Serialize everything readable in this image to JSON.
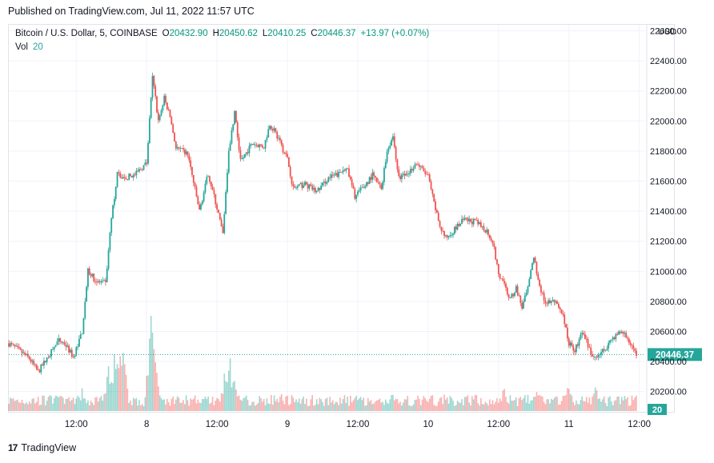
{
  "header": {
    "published": "Published on TradingView.com, Jul 11, 2022 11:57 UTC"
  },
  "legend": {
    "symbol": "Bitcoin / U.S. Dollar, 5, COINBASE",
    "open_key": "O",
    "open": "20432.90",
    "high_key": "H",
    "high": "20450.62",
    "low_key": "L",
    "low": "20410.25",
    "close_key": "C",
    "close": "20446.37",
    "change": "+13.97 (+0.07%)",
    "vol_label": "Vol",
    "vol_value": "20"
  },
  "footer": {
    "brand": "TradingView",
    "logo": "17"
  },
  "colors": {
    "up": "#26a69a",
    "down": "#ef5350",
    "grid": "#f0f3fa",
    "last_price": "#26a69a"
  },
  "chart_data": {
    "type": "candlestick",
    "symbol": "Bitcoin / U.S. Dollar",
    "interval": "5",
    "exchange": "COINBASE",
    "currency": "USD",
    "ylim": [
      20060,
      22640
    ],
    "y_ticks": [
      "22600.00",
      "22400.00",
      "22200.00",
      "22000.00",
      "21800.00",
      "21600.00",
      "21400.00",
      "21200.00",
      "21000.00",
      "20800.00",
      "20600.00",
      "20400.00",
      "20200.00"
    ],
    "y_tick_values": [
      22600,
      22400,
      22200,
      22000,
      21800,
      21600,
      21400,
      21200,
      21000,
      20800,
      20600,
      20400,
      20200
    ],
    "x_ticks": [
      "12:00",
      "8",
      "12:00",
      "9",
      "12:00",
      "10",
      "12:00",
      "11",
      "12:00"
    ],
    "x_tick_hours": [
      12,
      24,
      36,
      48,
      60,
      72,
      84,
      96,
      108
    ],
    "x_range_hours": [
      0.5,
      109
    ],
    "last_price": 20446.37,
    "last_price_label": "20446.37",
    "last_volume": 20,
    "last_volume_label": "20",
    "price_path": [
      {
        "h": 0.5,
        "p": 20520
      },
      {
        "h": 2,
        "p": 20480
      },
      {
        "h": 4,
        "p": 20420
      },
      {
        "h": 5.5,
        "p": 20330
      },
      {
        "h": 7,
        "p": 20420
      },
      {
        "h": 9,
        "p": 20540
      },
      {
        "h": 10,
        "p": 20520
      },
      {
        "h": 11.5,
        "p": 20430
      },
      {
        "h": 13,
        "p": 20600
      },
      {
        "h": 14,
        "p": 21000
      },
      {
        "h": 15.5,
        "p": 20930
      },
      {
        "h": 17,
        "p": 20920
      },
      {
        "h": 18,
        "p": 21350
      },
      {
        "h": 19,
        "p": 21650
      },
      {
        "h": 20,
        "p": 21620
      },
      {
        "h": 22,
        "p": 21640
      },
      {
        "h": 24,
        "p": 21720
      },
      {
        "h": 25,
        "p": 22300
      },
      {
        "h": 26,
        "p": 22000
      },
      {
        "h": 27,
        "p": 22150
      },
      {
        "h": 28,
        "p": 22030
      },
      {
        "h": 29,
        "p": 21820
      },
      {
        "h": 31,
        "p": 21780
      },
      {
        "h": 33,
        "p": 21400
      },
      {
        "h": 34.5,
        "p": 21650
      },
      {
        "h": 36,
        "p": 21420
      },
      {
        "h": 37,
        "p": 21250
      },
      {
        "h": 38,
        "p": 21800
      },
      {
        "h": 39,
        "p": 22060
      },
      {
        "h": 40,
        "p": 21730
      },
      {
        "h": 42,
        "p": 21850
      },
      {
        "h": 44,
        "p": 21830
      },
      {
        "h": 45,
        "p": 21980
      },
      {
        "h": 46,
        "p": 21920
      },
      {
        "h": 47,
        "p": 21830
      },
      {
        "h": 48,
        "p": 21750
      },
      {
        "h": 49,
        "p": 21550
      },
      {
        "h": 51,
        "p": 21580
      },
      {
        "h": 53,
        "p": 21530
      },
      {
        "h": 55,
        "p": 21620
      },
      {
        "h": 57,
        "p": 21650
      },
      {
        "h": 58,
        "p": 21700
      },
      {
        "h": 59.5,
        "p": 21500
      },
      {
        "h": 61,
        "p": 21560
      },
      {
        "h": 62.5,
        "p": 21640
      },
      {
        "h": 64,
        "p": 21550
      },
      {
        "h": 65,
        "p": 21800
      },
      {
        "h": 66,
        "p": 21900
      },
      {
        "h": 67,
        "p": 21620
      },
      {
        "h": 68.5,
        "p": 21650
      },
      {
        "h": 70,
        "p": 21720
      },
      {
        "h": 72,
        "p": 21630
      },
      {
        "h": 73,
        "p": 21450
      },
      {
        "h": 74,
        "p": 21300
      },
      {
        "h": 75,
        "p": 21220
      },
      {
        "h": 77,
        "p": 21300
      },
      {
        "h": 78,
        "p": 21340
      },
      {
        "h": 80,
        "p": 21330
      },
      {
        "h": 82,
        "p": 21270
      },
      {
        "h": 83,
        "p": 21200
      },
      {
        "h": 84,
        "p": 20980
      },
      {
        "h": 85,
        "p": 20900
      },
      {
        "h": 86,
        "p": 20810
      },
      {
        "h": 87,
        "p": 20890
      },
      {
        "h": 88,
        "p": 20760
      },
      {
        "h": 89,
        "p": 20880
      },
      {
        "h": 90,
        "p": 21100
      },
      {
        "h": 91,
        "p": 20900
      },
      {
        "h": 92,
        "p": 20790
      },
      {
        "h": 93.5,
        "p": 20800
      },
      {
        "h": 95,
        "p": 20700
      },
      {
        "h": 96,
        "p": 20520
      },
      {
        "h": 97,
        "p": 20480
      },
      {
        "h": 98.5,
        "p": 20600
      },
      {
        "h": 100,
        "p": 20420
      },
      {
        "h": 102,
        "p": 20480
      },
      {
        "h": 103.5,
        "p": 20560
      },
      {
        "h": 105,
        "p": 20600
      },
      {
        "h": 106.5,
        "p": 20520
      },
      {
        "h": 107.5,
        "p": 20446
      }
    ],
    "volume_spikes": [
      {
        "h": 7.5,
        "v": 0.18
      },
      {
        "h": 13,
        "v": 0.22
      },
      {
        "h": 17.5,
        "v": 0.45
      },
      {
        "h": 18.5,
        "v": 0.55
      },
      {
        "h": 19.3,
        "v": 0.75
      },
      {
        "h": 20,
        "v": 0.6
      },
      {
        "h": 24.8,
        "v": 1.0
      },
      {
        "h": 25.5,
        "v": 0.5
      },
      {
        "h": 37.5,
        "v": 0.45
      },
      {
        "h": 38.2,
        "v": 0.55
      },
      {
        "h": 38.8,
        "v": 0.4
      },
      {
        "h": 47,
        "v": 0.2
      },
      {
        "h": 66,
        "v": 0.2
      },
      {
        "h": 85,
        "v": 0.25
      },
      {
        "h": 90.5,
        "v": 0.2
      },
      {
        "h": 96,
        "v": 0.3
      },
      {
        "h": 100.5,
        "v": 0.28
      },
      {
        "h": 104,
        "v": 0.15
      }
    ]
  }
}
